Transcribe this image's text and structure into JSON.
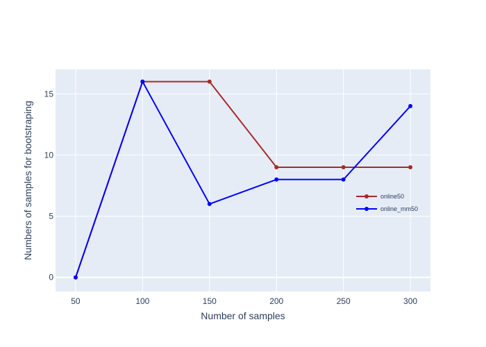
{
  "chart_data": {
    "type": "line",
    "xlabel": "Number of samples",
    "ylabel": "Numbers of samples for bootstraping",
    "x": [
      50,
      100,
      150,
      200,
      250,
      300
    ],
    "xticks": [
      "50",
      "100",
      "150",
      "200",
      "250",
      "300"
    ],
    "yticks": [
      "0",
      "5",
      "10",
      "15"
    ],
    "xlim": [
      35,
      315
    ],
    "ylim": [
      -1.15,
      17
    ],
    "grid": true,
    "legend_position": "right",
    "plot_background": "#e5ecf6",
    "series": [
      {
        "name": "online50",
        "color": "#a52a2a",
        "values": [
          0,
          16,
          16,
          9,
          9,
          9
        ]
      },
      {
        "name": "online_mm50",
        "color": "#0000ff",
        "values": [
          0,
          16,
          6,
          8,
          8,
          14
        ]
      }
    ]
  }
}
